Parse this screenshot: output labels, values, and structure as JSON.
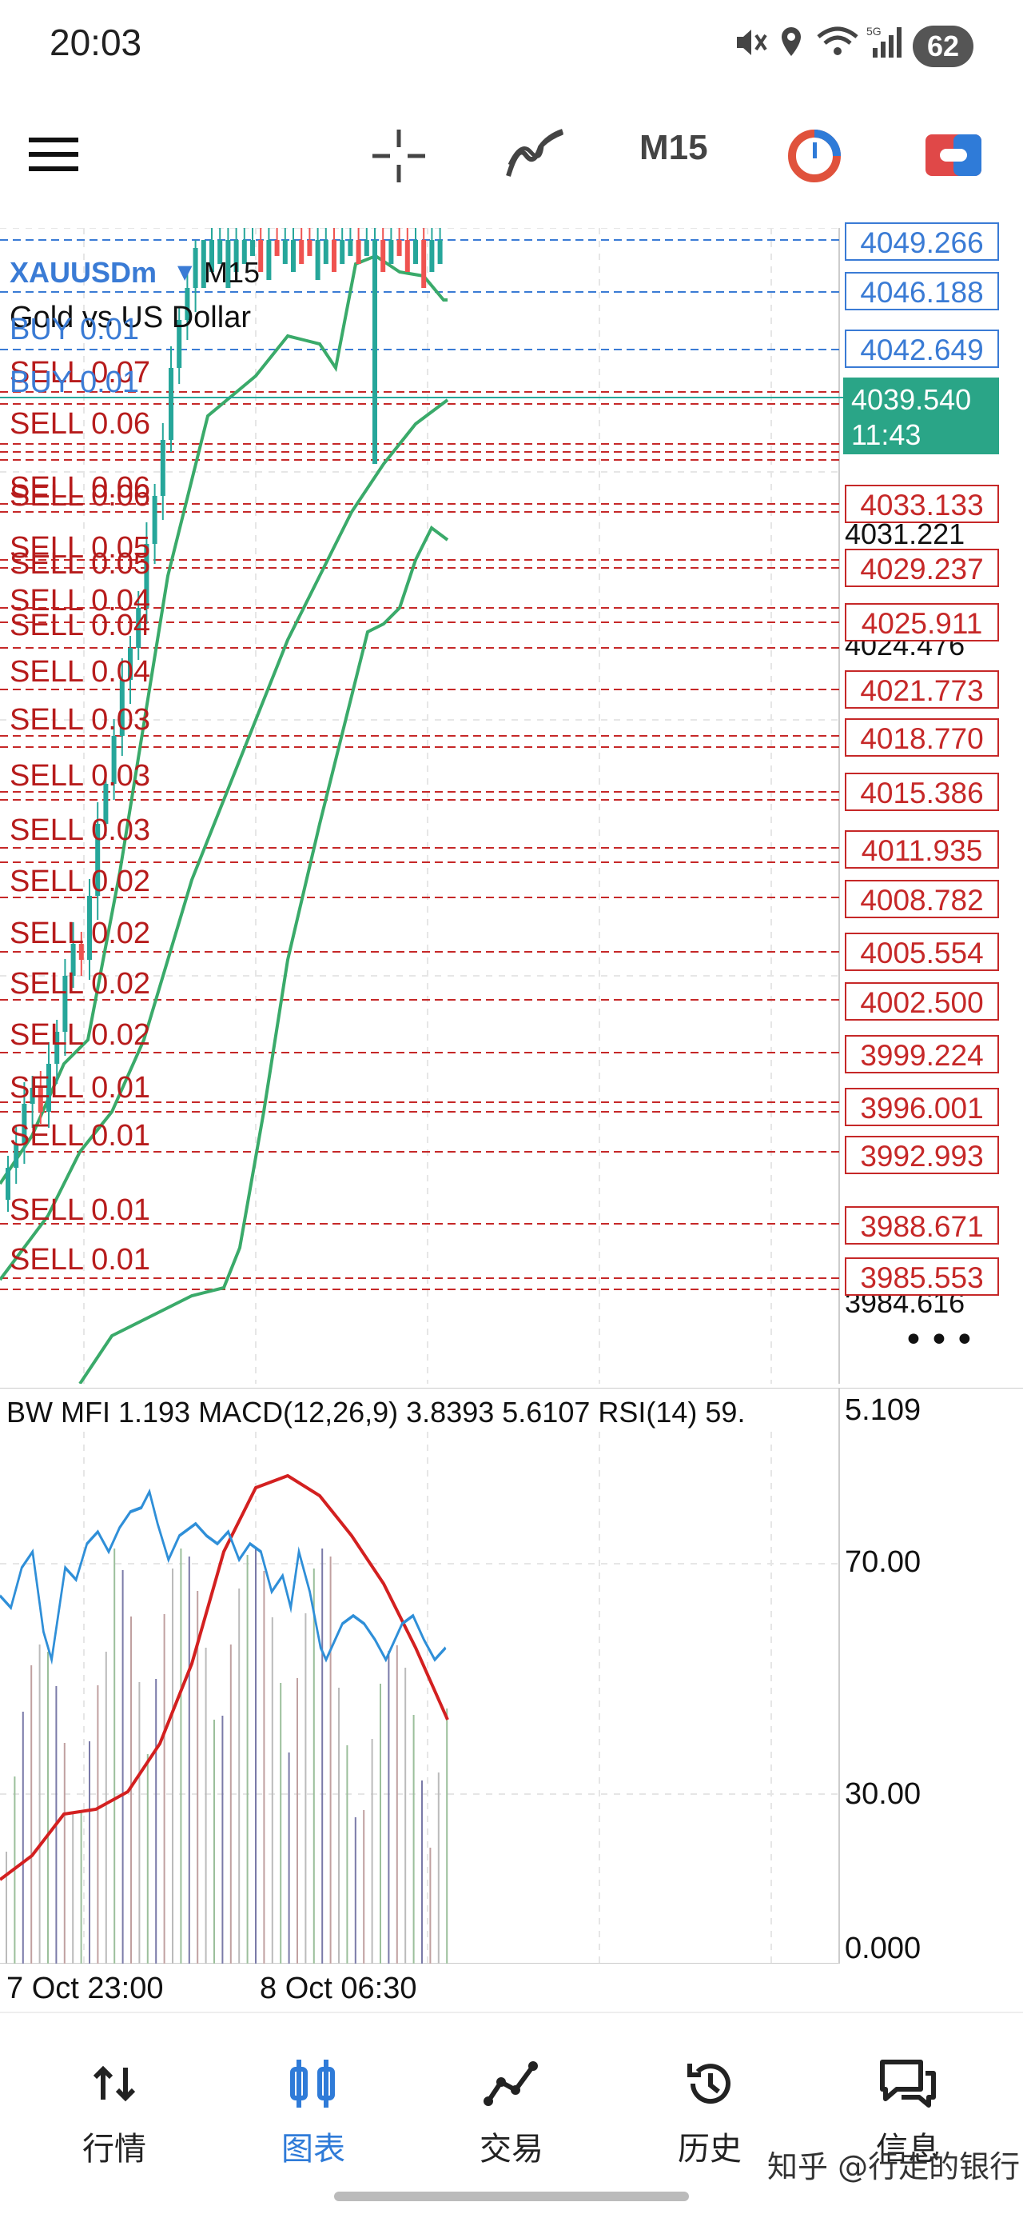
{
  "status_bar": {
    "time": "20:03",
    "battery": "62",
    "icons": [
      "mute-icon",
      "location-icon",
      "wifi-icon",
      "signal-icon"
    ]
  },
  "toolbar": {
    "timeframe": "M15",
    "icons": [
      "menu-icon",
      "crosshair-icon",
      "indicators-icon",
      "objects-icon",
      "trade-icon"
    ],
    "accent": "#2f7bd8"
  },
  "chart": {
    "symbol": "XAUUSDm",
    "timeframe": "M15",
    "description": "Gold vs US Dollar",
    "current_price": "4039.540",
    "countdown": "11:43",
    "overlapped_hidden_symbol": "XAUUSDm",
    "orders": [
      {
        "text": "BUY 0.01",
        "side": "buy",
        "row": 0
      },
      {
        "text": "SELL 0.07",
        "side": "sell",
        "row": 1
      },
      {
        "text": "BUY 0.01",
        "side": "buy",
        "row": 2
      },
      {
        "text": "SELL 0.06",
        "side": "sell",
        "row": 3
      },
      {
        "text": "SELL 0.06",
        "side": "sell",
        "row": 4
      },
      {
        "text": "SELL 0.06",
        "side": "sell",
        "row": 5
      },
      {
        "text": "SELL 0.05",
        "side": "sell",
        "row": 6
      },
      {
        "text": "SELL 0.05",
        "side": "sell",
        "row": 7
      },
      {
        "text": "SELL 0.04",
        "side": "sell",
        "row": 8
      },
      {
        "text": "SELL 0.04",
        "side": "sell",
        "row": 9
      },
      {
        "text": "SELL 0.04",
        "side": "sell",
        "row": 10
      },
      {
        "text": "SELL 0.03",
        "side": "sell",
        "row": 11
      },
      {
        "text": "SELL 0.03",
        "side": "sell",
        "row": 12
      },
      {
        "text": "SELL 0.03",
        "side": "sell",
        "row": 13
      },
      {
        "text": "SELL 0.02",
        "side": "sell",
        "row": 14
      },
      {
        "text": "SELL 0.02",
        "side": "sell",
        "row": 15
      },
      {
        "text": "SELL 0.02",
        "side": "sell",
        "row": 16
      },
      {
        "text": "SELL 0.02",
        "side": "sell",
        "row": 17
      },
      {
        "text": "SELL 0.01",
        "side": "sell",
        "row": 18
      },
      {
        "text": "SELL 0.01",
        "side": "sell",
        "row": 19
      },
      {
        "text": "SELL 0.01",
        "side": "sell",
        "row": 20
      },
      {
        "text": "SELL 0.01",
        "side": "sell",
        "row": 21
      }
    ],
    "price_labels": [
      {
        "text": "4049.266",
        "color": "blue"
      },
      {
        "text": "4046.188",
        "color": "blue"
      },
      {
        "text": "4042.649",
        "color": "blue"
      },
      {
        "text": "4033.133",
        "color": "red"
      },
      {
        "text": "4029.237",
        "color": "red"
      },
      {
        "text": "4025.911",
        "color": "red"
      },
      {
        "text": "4021.773",
        "color": "red"
      },
      {
        "text": "4018.770",
        "color": "red"
      },
      {
        "text": "4015.386",
        "color": "red"
      },
      {
        "text": "4011.935",
        "color": "red"
      },
      {
        "text": "4008.782",
        "color": "red"
      },
      {
        "text": "4005.554",
        "color": "red"
      },
      {
        "text": "4002.500",
        "color": "red"
      },
      {
        "text": "3999.224",
        "color": "red"
      },
      {
        "text": "3996.001",
        "color": "red"
      },
      {
        "text": "3992.993",
        "color": "red"
      },
      {
        "text": "3988.671",
        "color": "red"
      },
      {
        "text": "3985.553",
        "color": "red"
      }
    ],
    "axis_prices": [
      "4031.221",
      "4024.476",
      "3984.616"
    ],
    "more_label": "•••",
    "colors": {
      "bull": "#26a69a",
      "bear": "#ef5350",
      "bands": "#3aaa6a",
      "sell_line": "#c62828",
      "buy_line": "#3a7bd5"
    }
  },
  "indicator": {
    "label": "BW MFI 1.193 MACD(12,26,9) 3.8393 5.6107 RSI(14) 59.",
    "right_value": "5.109",
    "ticks": [
      "70.00",
      "30.00",
      "0.000"
    ],
    "x_labels": [
      "7 Oct 23:00",
      "8 Oct 06:30"
    ]
  },
  "bottom_nav": {
    "items": [
      {
        "label": "行情",
        "icon": "quotes-icon",
        "active": false
      },
      {
        "label": "图表",
        "icon": "chart-icon",
        "active": true
      },
      {
        "label": "交易",
        "icon": "trade-icon",
        "active": false
      },
      {
        "label": "历史",
        "icon": "history-icon",
        "active": false
      },
      {
        "label": "信息",
        "icon": "messages-icon",
        "active": false
      }
    ]
  },
  "watermark": "知乎 @行走的银行"
}
